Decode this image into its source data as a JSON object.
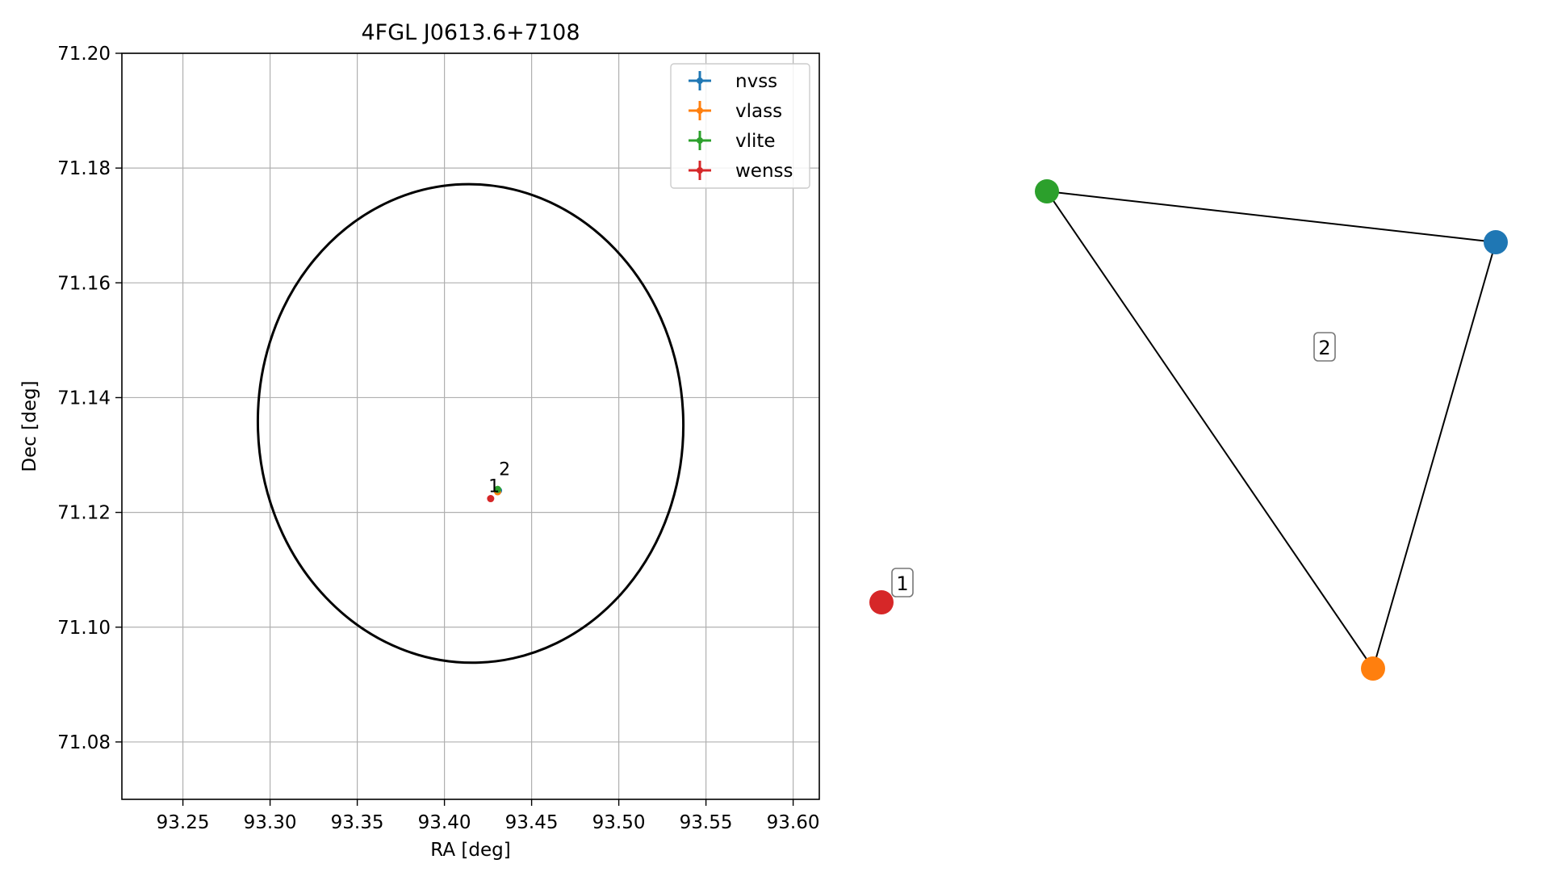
{
  "chart_data": [
    {
      "type": "scatter",
      "title": "4FGL J0613.6+7108",
      "xlabel": "RA [deg]",
      "ylabel": "Dec [deg]",
      "xlim": [
        93.215,
        93.615
      ],
      "ylim": [
        71.07,
        71.2
      ],
      "xticks": [
        "93.25",
        "93.30",
        "93.35",
        "93.40",
        "93.45",
        "93.50",
        "93.55",
        "93.60"
      ],
      "yticks": [
        "71.08",
        "71.10",
        "71.12",
        "71.14",
        "71.16",
        "71.18",
        "71.20"
      ],
      "grid": true,
      "legend": {
        "placement": "top-right",
        "entries": [
          {
            "name": "nvss",
            "color": "#1f77b4"
          },
          {
            "name": "vlass",
            "color": "#ff7f0e"
          },
          {
            "name": "vlite",
            "color": "#2ca02c"
          },
          {
            "name": "wenss",
            "color": "#d62728"
          }
        ]
      },
      "ellipse": {
        "center_ra": 93.415,
        "center_dec": 71.1355,
        "half_width_ra": 0.122,
        "half_height_dec": 0.0417,
        "color": "#000000"
      },
      "points": [
        {
          "series": "nvss",
          "ra": 93.431,
          "dec": 71.1238,
          "color": "#1f77b4"
        },
        {
          "series": "vlass",
          "ra": 93.4305,
          "dec": 71.1236,
          "color": "#ff7f0e"
        },
        {
          "series": "vlite",
          "ra": 93.4305,
          "dec": 71.124,
          "color": "#2ca02c"
        },
        {
          "series": "wenss",
          "ra": 93.4265,
          "dec": 71.1224,
          "color": "#d62728"
        }
      ],
      "annotations": [
        {
          "text": "1",
          "ra": 93.4285,
          "dec": 71.1235
        },
        {
          "text": "2",
          "ra": 93.4345,
          "dec": 71.1265
        }
      ]
    },
    {
      "type": "diagram",
      "nodes": [
        {
          "id": "wenss",
          "color": "#d62728",
          "cx": 0.0,
          "cy": 0.0
        },
        {
          "id": "vlite",
          "color": "#2ca02c",
          "cx": 1.0,
          "cy": 0.0
        },
        {
          "id": "nvss",
          "color": "#1f77b4",
          "cx": 2.0,
          "cy": 0.0
        },
        {
          "id": "vlass",
          "color": "#ff7f0e",
          "cx": 3.0,
          "cy": 0.0
        }
      ],
      "edges": [
        [
          "vlite",
          "nvss"
        ],
        [
          "nvss",
          "vlass"
        ],
        [
          "vlass",
          "vlite"
        ]
      ],
      "group_labels": [
        {
          "text": "1",
          "group": [
            "wenss"
          ]
        },
        {
          "text": "2",
          "group": [
            "vlite",
            "nvss",
            "vlass"
          ]
        }
      ]
    }
  ]
}
